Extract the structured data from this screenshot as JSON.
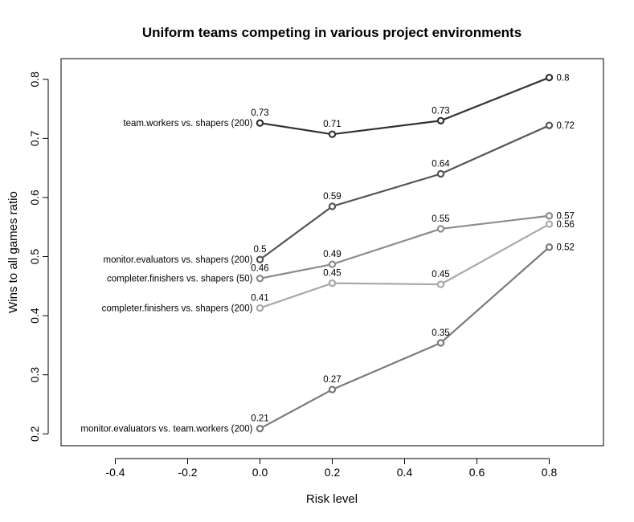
{
  "chart_data": {
    "type": "line",
    "title": "Uniform teams competing in various project environments",
    "xlabel": "Risk level",
    "ylabel": "Wins to all games ratio",
    "xlim": [
      -0.55,
      0.95
    ],
    "ylim": [
      0.18,
      0.835
    ],
    "xticks": [
      -0.4,
      -0.2,
      0.0,
      0.2,
      0.4,
      0.6,
      0.8
    ],
    "xtick_labels": [
      "-0.4",
      "-0.2",
      "0.0",
      "0.2",
      "0.4",
      "0.6",
      "0.8"
    ],
    "yticks": [
      0.2,
      0.3,
      0.4,
      0.5,
      0.6,
      0.7,
      0.8
    ],
    "ytick_labels": [
      "0.2",
      "0.3",
      "0.4",
      "0.5",
      "0.6",
      "0.7",
      "0.8"
    ],
    "grid": false,
    "legend": "none",
    "x": [
      0.0,
      0.2,
      0.5,
      0.8
    ],
    "series": [
      {
        "name": "team.workers vs. shapers (200)",
        "color": "#333333",
        "values": [
          0.726,
          0.707,
          0.73,
          0.803
        ],
        "labels": [
          "0.73",
          "0.71",
          "0.73",
          "0.8"
        ]
      },
      {
        "name": "monitor.evaluators vs. shapers (200)",
        "color": "#555555",
        "values": [
          0.495,
          0.585,
          0.64,
          0.722
        ],
        "labels": [
          "0.5",
          "0.59",
          "0.64",
          "0.72"
        ]
      },
      {
        "name": "completer.finishers vs. shapers (50)",
        "color": "#8c8c8c",
        "values": [
          0.463,
          0.487,
          0.547,
          0.569
        ],
        "labels": [
          "0.46",
          "0.49",
          "0.55",
          "0.57"
        ]
      },
      {
        "name": "completer.finishers vs. shapers (200)",
        "color": "#a9a9a9",
        "values": [
          0.413,
          0.455,
          0.453,
          0.555
        ],
        "labels": [
          "0.41",
          "0.45",
          "0.45",
          "0.56"
        ]
      },
      {
        "name": "monitor.evaluators vs. team.workers (200)",
        "color": "#7a7a7a",
        "values": [
          0.209,
          0.275,
          0.354,
          0.516
        ],
        "labels": [
          "0.21",
          "0.27",
          "0.35",
          "0.52"
        ]
      }
    ]
  }
}
